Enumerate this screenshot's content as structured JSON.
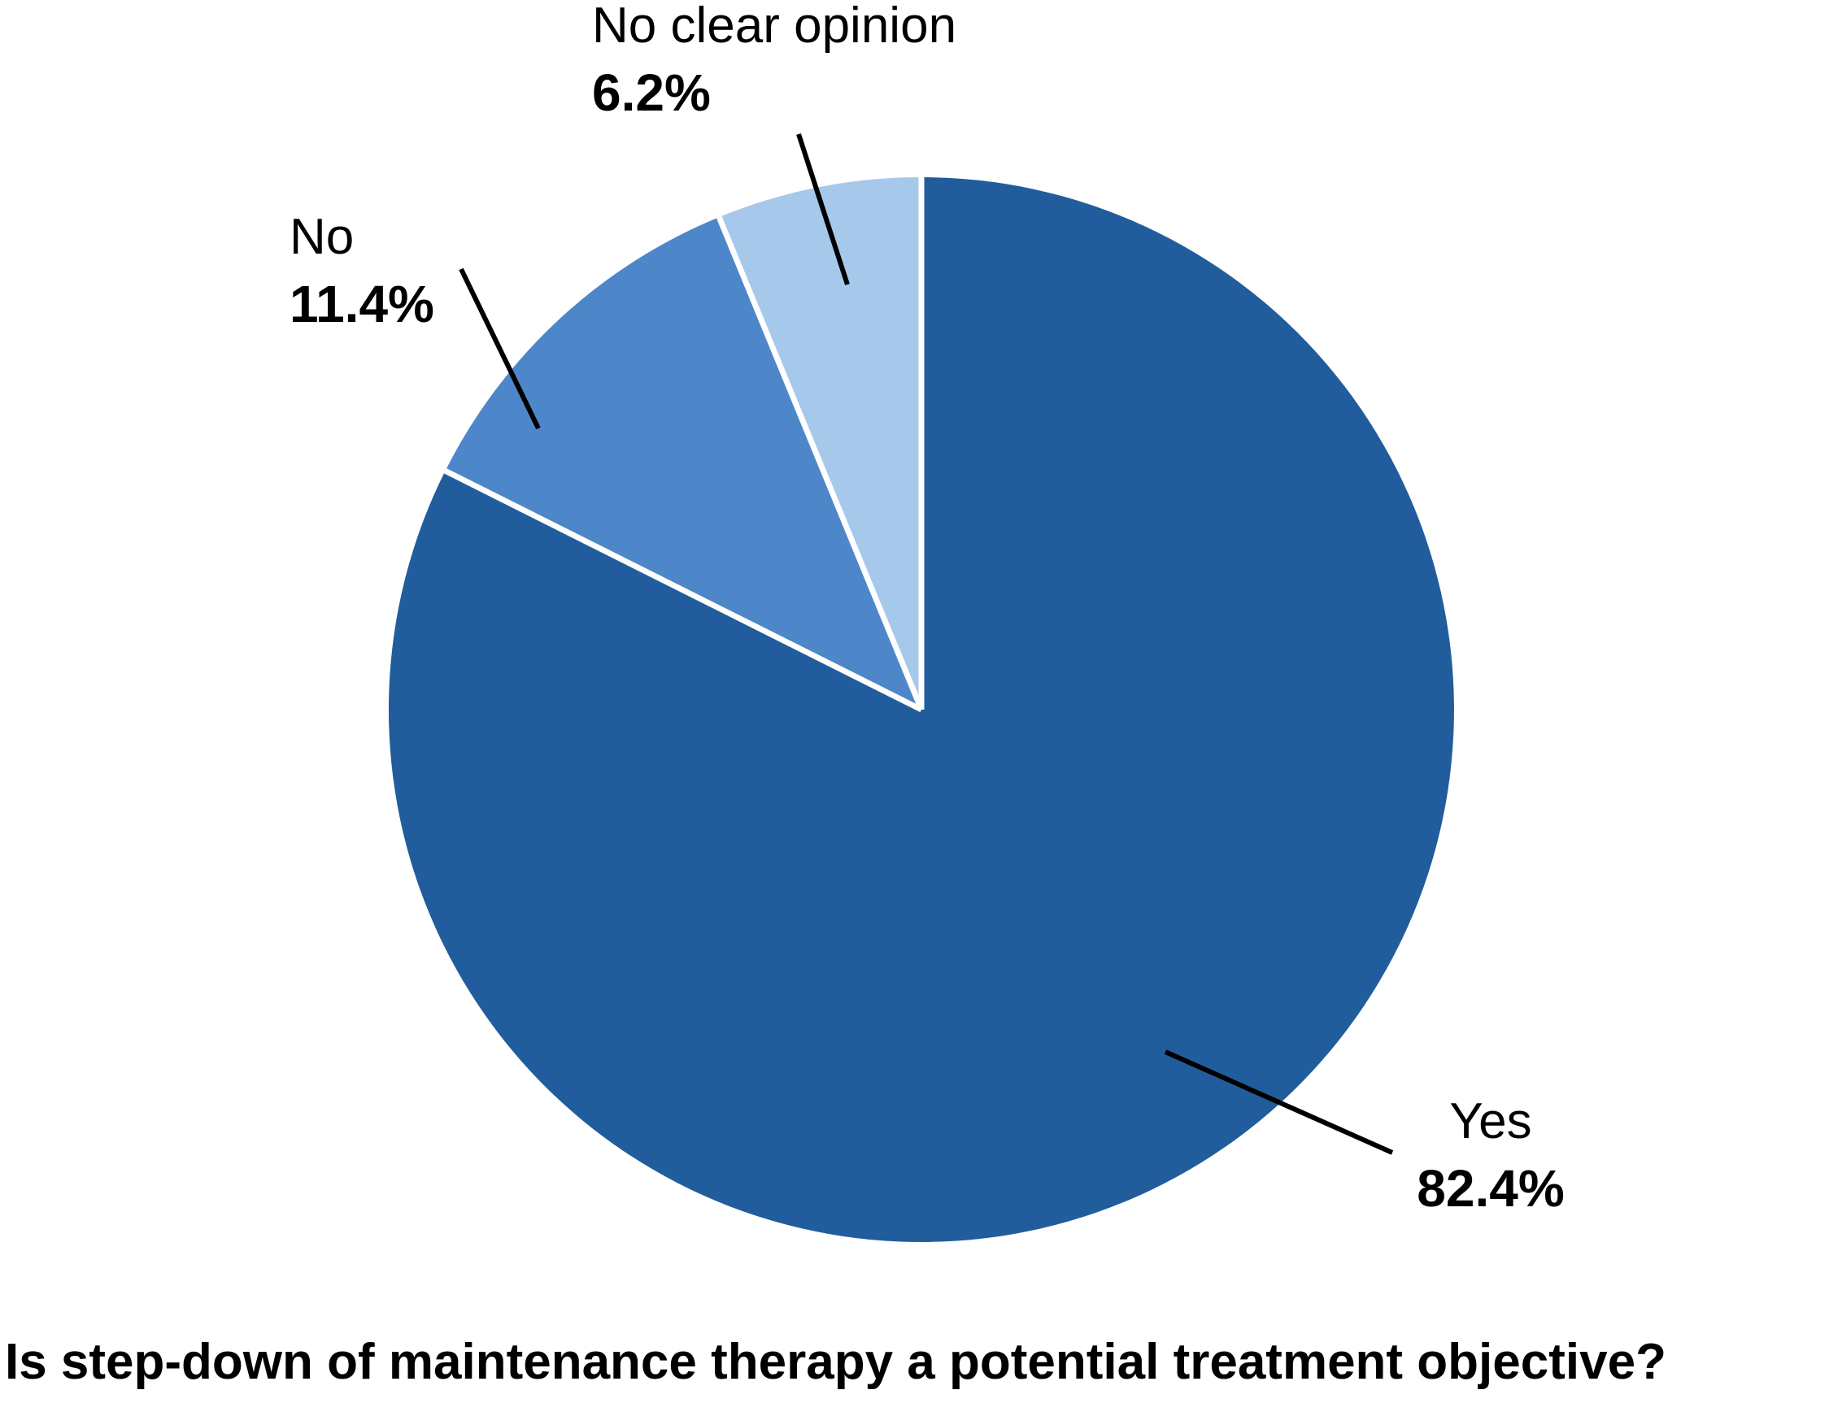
{
  "chart_data": {
    "type": "pie",
    "title": "Is step-down of maintenance therapy a potential treatment objective?",
    "start_angle": "12 o'clock",
    "direction": "clockwise",
    "background_color": "#FFFFFF",
    "separator_color": "#FFFFFF",
    "leader_line_color": "#000000",
    "legend_position": "none (direct labels with leader lines)",
    "slices": [
      {
        "id": "yes",
        "label": "Yes",
        "pct_label": "82.4%",
        "value": 82.4,
        "color": "#215D9C"
      },
      {
        "id": "no",
        "label": "No",
        "pct_label": "11.4%",
        "value": 11.4,
        "color": "#4E87C9"
      },
      {
        "id": "ncop",
        "label": "No clear opinion",
        "pct_label": "6.2%",
        "value": 6.2,
        "color": "#A6C9EB"
      }
    ]
  }
}
